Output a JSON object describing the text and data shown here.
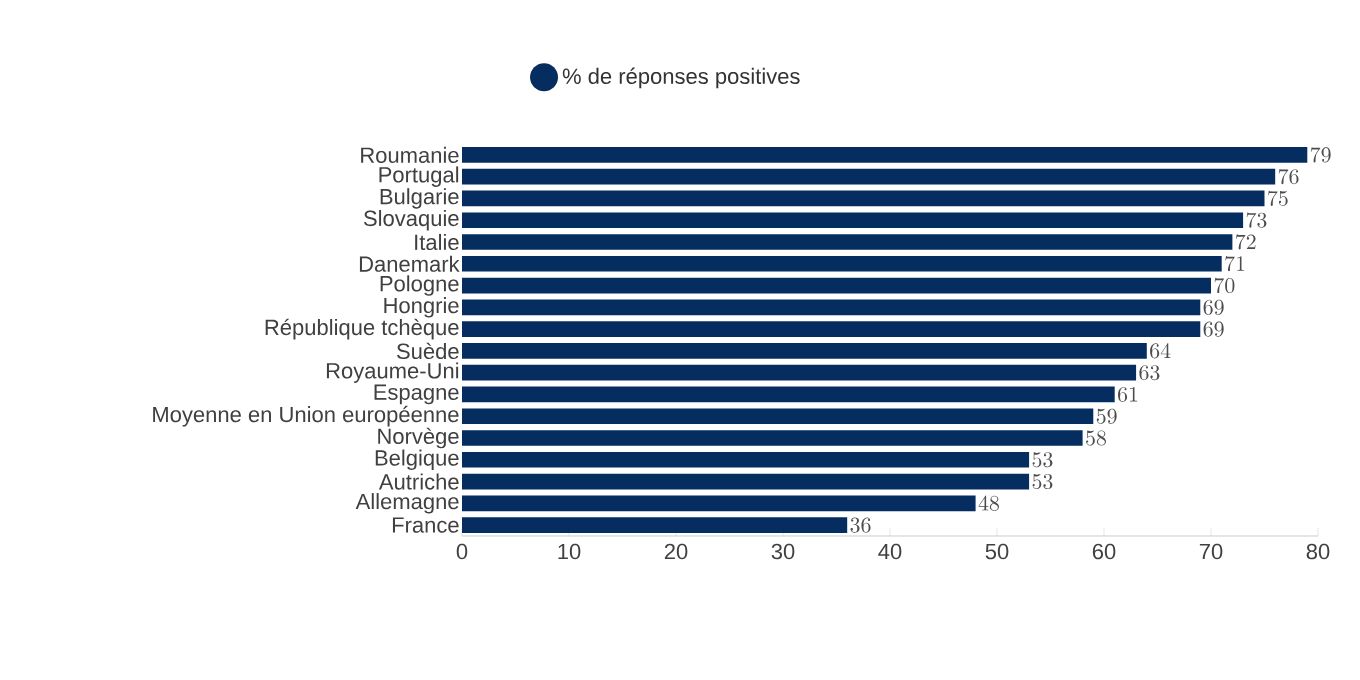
{
  "chart_data": {
    "type": "bar",
    "orientation": "horizontal",
    "categories": [
      "Roumanie",
      "Portugal",
      "Bulgarie",
      "Slovaquie",
      "Italie",
      "Danemark",
      "Pologne",
      "Hongrie",
      "République tchèque",
      "Suède",
      "Royaume-Uni",
      "Espagne",
      "Moyenne en Union européenne",
      "Norvège",
      "Belgique",
      "Autriche",
      "Allemagne",
      "France"
    ],
    "series": [
      {
        "name": "% de réponses positives",
        "color": "#062d5f",
        "values": [
          79,
          76,
          75,
          73,
          72,
          71,
          70,
          69,
          69,
          64,
          63,
          61,
          59,
          58,
          53,
          53,
          48,
          36
        ]
      }
    ],
    "xlim": [
      0,
      80
    ],
    "xticks": [
      0,
      10,
      20,
      30,
      40,
      50,
      60,
      70,
      80
    ],
    "data_labels": true,
    "legend": "top",
    "grid": false,
    "marker": "circle"
  }
}
